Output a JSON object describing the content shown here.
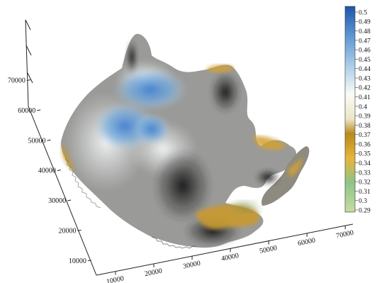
{
  "chart_data": {
    "type": "surface3d",
    "title": "",
    "x_axis": {
      "ticks": [
        "10000",
        "20000",
        "30000",
        "40000",
        "50000",
        "60000",
        "70000"
      ],
      "range": [
        5000,
        72000
      ]
    },
    "y_axis": {
      "ticks": [
        "10000",
        "20000",
        "30000",
        "40000",
        "50000",
        "60000",
        "70000"
      ],
      "range": [
        5000,
        72000
      ]
    },
    "z_axis": {
      "ticks": []
    },
    "colorbar": {
      "ticks": [
        "0.5",
        "0.49",
        "0.48",
        "0.47",
        "0.46",
        "0.45",
        "0.44",
        "0.43",
        "0.42",
        "0.41",
        "0.4",
        "0.39",
        "0.38",
        "0.37",
        "0.36",
        "0.35",
        "0.34",
        "0.33",
        "0.32",
        "0.31",
        "0.3",
        "0.29"
      ],
      "range": [
        0.29,
        0.5
      ],
      "colors": [
        {
          "value": 0.29,
          "color": "#c8dca0"
        },
        {
          "value": 0.32,
          "color": "#8ec488"
        },
        {
          "value": 0.345,
          "color": "#e6b53a"
        },
        {
          "value": 0.37,
          "color": "#b88a1e"
        },
        {
          "value": 0.385,
          "color": "#ece6c4"
        },
        {
          "value": 0.41,
          "color": "#fbfbf7"
        },
        {
          "value": 0.44,
          "color": "#a9cde8"
        },
        {
          "value": 0.47,
          "color": "#5c97d4"
        },
        {
          "value": 0.5,
          "color": "#1e55aa"
        }
      ]
    },
    "legend": "right",
    "grid": false
  }
}
